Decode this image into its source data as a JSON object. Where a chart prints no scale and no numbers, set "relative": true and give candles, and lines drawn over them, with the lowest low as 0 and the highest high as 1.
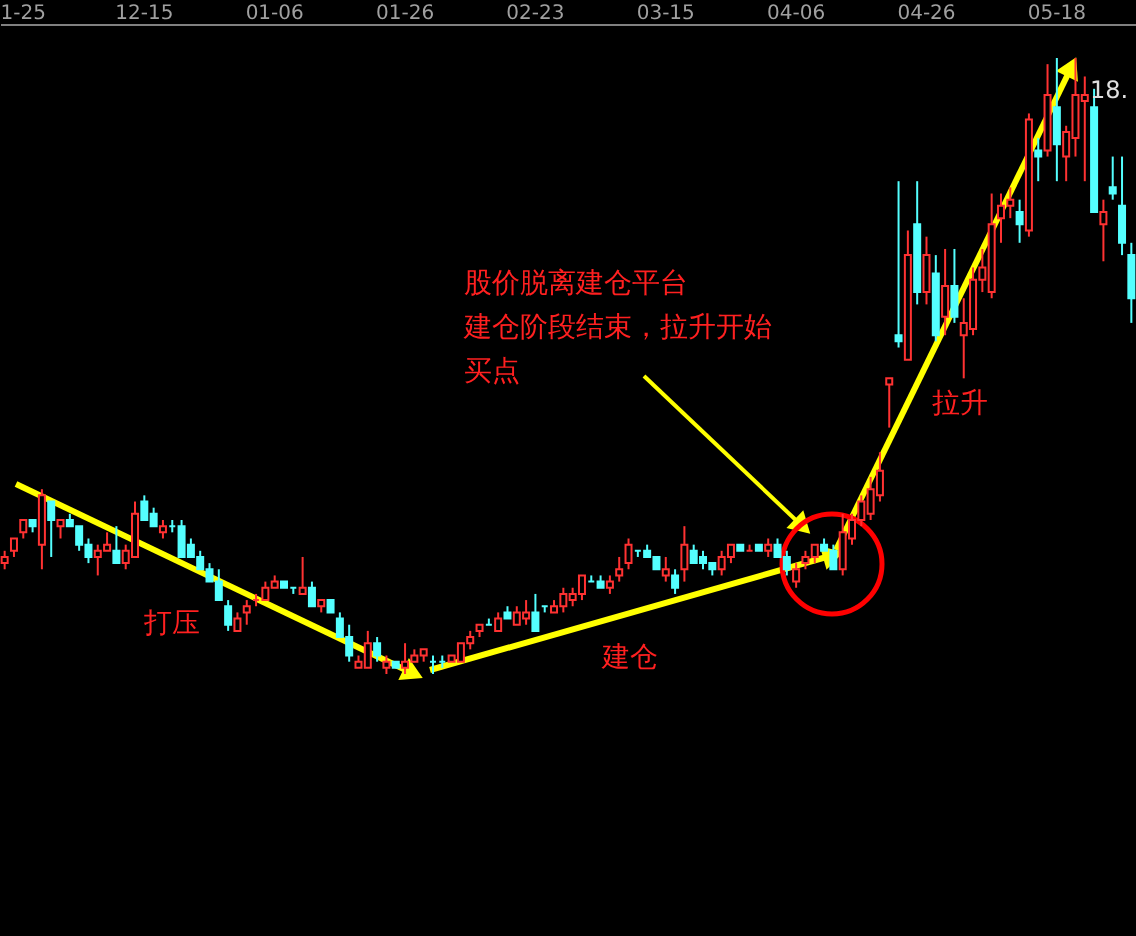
{
  "chart_data": {
    "type": "candlestick",
    "relative": true,
    "categories": [
      null,
      null,
      "1-25",
      null,
      null,
      null,
      null,
      null,
      null,
      null,
      null,
      null,
      null,
      null,
      null,
      "12-15",
      null,
      null,
      null,
      null,
      null,
      null,
      null,
      null,
      null,
      null,
      null,
      null,
      null,
      "01-06",
      null,
      null,
      null,
      null,
      null,
      null,
      null,
      null,
      null,
      null,
      null,
      null,
      null,
      "01-26",
      null,
      null,
      null,
      null,
      null,
      null,
      null,
      null,
      null,
      null,
      null,
      null,
      null,
      "02-23",
      null,
      null,
      null,
      null,
      null,
      null,
      null,
      null,
      null,
      null,
      null,
      null,
      null,
      "03-15",
      null,
      null,
      null,
      null,
      null,
      null,
      null,
      null,
      null,
      null,
      null,
      null,
      null,
      "04-06",
      null,
      null,
      null,
      null,
      null,
      null,
      null,
      null,
      null,
      null,
      null,
      null,
      null,
      "04-26",
      null,
      null,
      null,
      null,
      null,
      null,
      null,
      null,
      null,
      null,
      null,
      null,
      null,
      "05-18",
      null,
      null,
      null,
      null,
      null,
      null,
      null,
      null
    ],
    "ohlc": [
      [
        0.18,
        0.2,
        0.17,
        0.19
      ],
      [
        0.2,
        0.22,
        0.19,
        0.22
      ],
      [
        0.23,
        0.25,
        0.22,
        0.25
      ],
      [
        0.25,
        0.25,
        0.23,
        0.24
      ],
      [
        0.21,
        0.3,
        0.17,
        0.29
      ],
      [
        0.28,
        0.28,
        0.19,
        0.25
      ],
      [
        0.24,
        0.25,
        0.22,
        0.25
      ],
      [
        0.25,
        0.26,
        0.24,
        0.24
      ],
      [
        0.24,
        0.24,
        0.2,
        0.21
      ],
      [
        0.21,
        0.22,
        0.18,
        0.19
      ],
      [
        0.19,
        0.21,
        0.16,
        0.2
      ],
      [
        0.2,
        0.23,
        0.2,
        0.21
      ],
      [
        0.2,
        0.24,
        0.18,
        0.18
      ],
      [
        0.18,
        0.21,
        0.17,
        0.2
      ],
      [
        0.19,
        0.28,
        0.19,
        0.26
      ],
      [
        0.28,
        0.29,
        0.25,
        0.25
      ],
      [
        0.26,
        0.27,
        0.24,
        0.24
      ],
      [
        0.23,
        0.25,
        0.22,
        0.24
      ],
      [
        0.24,
        0.25,
        0.23,
        0.24
      ],
      [
        0.24,
        0.25,
        0.19,
        0.19
      ],
      [
        0.21,
        0.22,
        0.19,
        0.19
      ],
      [
        0.19,
        0.2,
        0.17,
        0.17
      ],
      [
        0.17,
        0.18,
        0.15,
        0.15
      ],
      [
        0.15,
        0.17,
        0.12,
        0.12
      ],
      [
        0.11,
        0.12,
        0.07,
        0.08
      ],
      [
        0.07,
        0.1,
        0.07,
        0.09
      ],
      [
        0.1,
        0.12,
        0.08,
        0.11
      ],
      [
        0.12,
        0.13,
        0.11,
        0.12
      ],
      [
        0.12,
        0.15,
        0.12,
        0.14
      ],
      [
        0.14,
        0.16,
        0.14,
        0.15
      ],
      [
        0.15,
        0.15,
        0.14,
        0.14
      ],
      [
        0.14,
        0.14,
        0.13,
        0.14
      ],
      [
        0.13,
        0.19,
        0.13,
        0.14
      ],
      [
        0.14,
        0.15,
        0.11,
        0.11
      ],
      [
        0.11,
        0.12,
        0.1,
        0.12
      ],
      [
        0.12,
        0.12,
        0.1,
        0.1
      ],
      [
        0.09,
        0.1,
        0.06,
        0.06
      ],
      [
        0.06,
        0.08,
        0.02,
        0.03
      ],
      [
        0.01,
        0.03,
        0.01,
        0.02
      ],
      [
        0.01,
        0.07,
        0.01,
        0.05
      ],
      [
        0.05,
        0.06,
        0.02,
        0.03
      ],
      [
        0.01,
        0.03,
        0.0,
        0.02
      ],
      [
        0.02,
        0.02,
        0.01,
        0.01
      ],
      [
        0.01,
        0.05,
        0.0,
        0.02
      ],
      [
        0.02,
        0.04,
        0.02,
        0.03
      ],
      [
        0.03,
        0.04,
        0.02,
        0.04
      ],
      [
        0.02,
        0.03,
        0.0,
        0.02
      ],
      [
        0.02,
        0.03,
        0.01,
        0.02
      ],
      [
        0.02,
        0.03,
        0.02,
        0.03
      ],
      [
        0.02,
        0.05,
        0.02,
        0.05
      ],
      [
        0.05,
        0.07,
        0.04,
        0.06
      ],
      [
        0.07,
        0.08,
        0.06,
        0.08
      ],
      [
        0.08,
        0.09,
        0.08,
        0.08
      ],
      [
        0.07,
        0.1,
        0.07,
        0.09
      ],
      [
        0.1,
        0.11,
        0.09,
        0.09
      ],
      [
        0.08,
        0.11,
        0.08,
        0.1
      ],
      [
        0.09,
        0.12,
        0.08,
        0.1
      ],
      [
        0.1,
        0.13,
        0.07,
        0.07
      ],
      [
        0.11,
        0.11,
        0.1,
        0.11
      ],
      [
        0.1,
        0.12,
        0.1,
        0.11
      ],
      [
        0.11,
        0.14,
        0.1,
        0.13
      ],
      [
        0.12,
        0.14,
        0.11,
        0.13
      ],
      [
        0.13,
        0.16,
        0.12,
        0.16
      ],
      [
        0.15,
        0.16,
        0.15,
        0.15
      ],
      [
        0.15,
        0.16,
        0.14,
        0.14
      ],
      [
        0.14,
        0.16,
        0.13,
        0.15
      ],
      [
        0.16,
        0.19,
        0.15,
        0.17
      ],
      [
        0.18,
        0.22,
        0.17,
        0.21
      ],
      [
        0.2,
        0.2,
        0.19,
        0.2
      ],
      [
        0.2,
        0.21,
        0.19,
        0.19
      ],
      [
        0.19,
        0.19,
        0.17,
        0.17
      ],
      [
        0.16,
        0.19,
        0.15,
        0.17
      ],
      [
        0.16,
        0.17,
        0.13,
        0.14
      ],
      [
        0.17,
        0.24,
        0.15,
        0.21
      ],
      [
        0.2,
        0.21,
        0.18,
        0.18
      ],
      [
        0.19,
        0.2,
        0.17,
        0.18
      ],
      [
        0.18,
        0.18,
        0.16,
        0.17
      ],
      [
        0.17,
        0.2,
        0.16,
        0.19
      ],
      [
        0.19,
        0.21,
        0.18,
        0.21
      ],
      [
        0.21,
        0.21,
        0.2,
        0.2
      ],
      [
        0.2,
        0.21,
        0.2,
        0.2
      ],
      [
        0.21,
        0.21,
        0.2,
        0.2
      ],
      [
        0.2,
        0.22,
        0.19,
        0.21
      ],
      [
        0.21,
        0.22,
        0.19,
        0.19
      ],
      [
        0.19,
        0.2,
        0.16,
        0.17
      ],
      [
        0.15,
        0.18,
        0.14,
        0.17
      ],
      [
        0.18,
        0.2,
        0.17,
        0.19
      ],
      [
        0.19,
        0.21,
        0.18,
        0.21
      ],
      [
        0.21,
        0.22,
        0.2,
        0.2
      ],
      [
        0.2,
        0.21,
        0.17,
        0.17
      ],
      [
        0.17,
        0.26,
        0.16,
        0.23
      ],
      [
        0.22,
        0.26,
        0.21,
        0.25
      ],
      [
        0.25,
        0.29,
        0.24,
        0.28
      ],
      [
        0.26,
        0.32,
        0.25,
        0.3
      ],
      [
        0.29,
        0.36,
        0.28,
        0.33
      ],
      [
        0.47,
        0.48,
        0.4,
        0.48
      ],
      [
        0.55,
        0.8,
        0.53,
        0.54
      ],
      [
        0.51,
        0.72,
        0.51,
        0.68
      ],
      [
        0.73,
        0.8,
        0.6,
        0.62
      ],
      [
        0.62,
        0.71,
        0.6,
        0.68
      ],
      [
        0.65,
        0.68,
        0.54,
        0.55
      ],
      [
        0.58,
        0.69,
        0.55,
        0.63
      ],
      [
        0.63,
        0.69,
        0.57,
        0.58
      ],
      [
        0.55,
        0.61,
        0.48,
        0.57
      ],
      [
        0.56,
        0.66,
        0.55,
        0.64
      ],
      [
        0.64,
        0.69,
        0.62,
        0.66
      ],
      [
        0.62,
        0.78,
        0.61,
        0.73
      ],
      [
        0.74,
        0.78,
        0.7,
        0.76
      ],
      [
        0.76,
        0.79,
        0.74,
        0.77
      ],
      [
        0.75,
        0.77,
        0.7,
        0.73
      ],
      [
        0.72,
        0.91,
        0.71,
        0.9
      ],
      [
        0.85,
        0.87,
        0.8,
        0.84
      ],
      [
        0.85,
        0.99,
        0.84,
        0.94
      ],
      [
        0.92,
        1.0,
        0.8,
        0.86
      ],
      [
        0.84,
        0.89,
        0.8,
        0.88
      ],
      [
        0.87,
        1.0,
        0.84,
        0.94
      ],
      [
        0.93,
        0.97,
        0.8,
        0.94
      ],
      [
        0.92,
        0.95,
        0.75,
        0.75
      ],
      [
        0.73,
        0.77,
        0.67,
        0.75
      ],
      [
        0.79,
        0.84,
        0.77,
        0.78
      ],
      [
        0.76,
        0.84,
        0.68,
        0.7
      ],
      [
        0.68,
        0.7,
        0.57,
        0.61
      ]
    ],
    "colors": [
      "#ff3232",
      "#ff3232",
      "#ff3232",
      "#54ffff",
      "#ff3232",
      "#54ffff",
      "#ff3232",
      "#54ffff",
      "#54ffff",
      "#54ffff",
      "#ff3232",
      "#ff3232",
      "#54ffff",
      "#ff3232",
      "#ff3232",
      "#54ffff",
      "#54ffff",
      "#ff3232",
      "#54ffff",
      "#54ffff",
      "#54ffff",
      "#54ffff",
      "#54ffff",
      "#54ffff",
      "#54ffff",
      "#ff3232",
      "#ff3232",
      "#ff3232",
      "#ff3232",
      "#ff3232",
      "#54ffff",
      "#54ffff",
      "#ff3232",
      "#54ffff",
      "#ff3232",
      "#54ffff",
      "#54ffff",
      "#54ffff",
      "#ff3232",
      "#ff3232",
      "#54ffff",
      "#ff3232",
      "#54ffff",
      "#ff3232",
      "#ff3232",
      "#ff3232",
      "#54ffff",
      "#54ffff",
      "#ff3232",
      "#ff3232",
      "#ff3232",
      "#ff3232",
      "#54ffff",
      "#ff3232",
      "#54ffff",
      "#ff3232",
      "#ff3232",
      "#54ffff",
      "#54ffff",
      "#ff3232",
      "#ff3232",
      "#ff3232",
      "#ff3232",
      "#54ffff",
      "#54ffff",
      "#ff3232",
      "#ff3232",
      "#ff3232",
      "#54ffff",
      "#54ffff",
      "#54ffff",
      "#ff3232",
      "#54ffff",
      "#ff3232",
      "#54ffff",
      "#54ffff",
      "#54ffff",
      "#ff3232",
      "#ff3232",
      "#54ffff",
      "#ff3232",
      "#54ffff",
      "#ff3232",
      "#54ffff",
      "#54ffff",
      "#ff3232",
      "#ff3232",
      "#ff3232",
      "#54ffff",
      "#54ffff",
      "#ff3232",
      "#ff3232",
      "#ff3232",
      "#ff3232",
      "#ff3232",
      "#ff3232",
      "#54ffff",
      "#ff3232",
      "#54ffff",
      "#ff3232",
      "#54ffff",
      "#ff3232",
      "#54ffff",
      "#ff3232",
      "#ff3232",
      "#ff3232",
      "#ff3232",
      "#ff3232",
      "#ff3232",
      "#54ffff",
      "#ff3232",
      "#54ffff",
      "#ff3232",
      "#54ffff",
      "#ff3232",
      "#ff3232",
      "#ff3232",
      "#54ffff",
      "#ff3232",
      "#54ffff",
      "#54ffff",
      "#54ffff"
    ],
    "annotations": [
      "打压",
      "建仓",
      "拉升",
      "股价脱离建仓平台",
      "建仓阶段结束，拉升开始",
      "买点",
      "18."
    ]
  }
}
